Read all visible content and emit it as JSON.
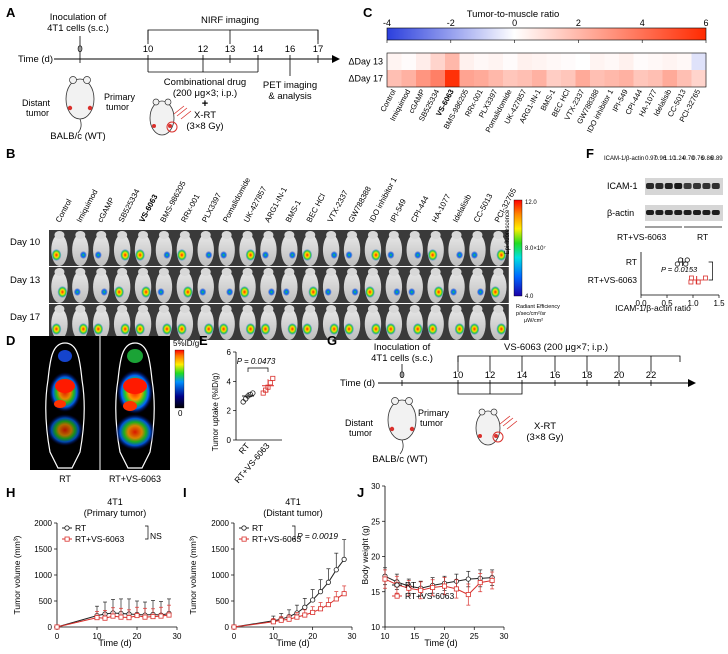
{
  "panels": {
    "A": {
      "letter": "A",
      "inoculation": [
        "Inoculation of",
        "4T1 cells (s.c.)"
      ],
      "nirf": "NIRF imaging",
      "time_label": "Time (d)",
      "days": [
        "0",
        "10",
        "12",
        "13",
        "14",
        "16",
        "17"
      ],
      "combo": [
        "Combinational drug",
        "(200 μg×3; i.p.)"
      ],
      "xrt": [
        "+",
        "X-RT",
        "(3×8 Gy)"
      ],
      "pet": [
        "PET imaging",
        "& analysis"
      ],
      "distant": [
        "Distant",
        "tumor"
      ],
      "primary": [
        "Primary",
        "tumor"
      ],
      "strain": "BALB/c (WT)"
    },
    "C": {
      "letter": "C",
      "title": "Tumor-to-muscle ratio",
      "scale_ticks": [
        "-4",
        "-2",
        "0",
        "2",
        "4",
        "6"
      ],
      "rows": [
        "ΔDay 13",
        "ΔDay 17"
      ]
    },
    "B": {
      "letter": "B",
      "rows": [
        "Day 10",
        "Day 13",
        "Day 17"
      ],
      "colorbar_title": "Epi-fluorescence",
      "colorbar_max": "12.0",
      "colorbar_mid": "8.0×10⁷",
      "colorbar_min": "4.0",
      "units": [
        "Radiant Efficiency",
        "p/sec/cm²/sr",
        "μW/cm²"
      ]
    },
    "F": {
      "letter": "F",
      "ratio_label": "ICAM-1/β-actin",
      "ratios": [
        "0.97",
        "0.96",
        "1.10",
        "1.24",
        "0.70",
        "0.76",
        "0.86",
        "0.89"
      ],
      "band1": "ICAM-1",
      "band2": "β-actin",
      "group1": "RT+VS-6063",
      "group2": "RT",
      "p_value": "P = 0.0153",
      "xlabel": "ICAM-1/β-actin ratio",
      "xticks": [
        "0.0",
        "0.5",
        "1.0",
        "1.5"
      ]
    },
    "D": {
      "letter": "D",
      "scale_top": "5%ID/g",
      "scale_bottom": "0",
      "label_left": "RT",
      "label_right": "RT+VS-6063"
    },
    "E": {
      "letter": "E",
      "p_value": "P = 0.0473",
      "ylabel": "Tumor uptake (%ID/g)",
      "yticks": [
        "0",
        "2",
        "4",
        "6"
      ],
      "cats": [
        "RT",
        "RT+VS-6063"
      ]
    },
    "G": {
      "letter": "G",
      "inoculation": [
        "Inoculation of",
        "4T1 cells (s.c.)"
      ],
      "drug": "VS-6063 (200 μg×7; i.p.)",
      "time_label": "Time (d)",
      "days": [
        "0",
        "10",
        "12",
        "14",
        "16",
        "18",
        "20",
        "22"
      ],
      "xrt": [
        "X-RT",
        "(3×8 Gy)"
      ],
      "distant": [
        "Distant",
        "tumor"
      ],
      "primary": [
        "Primary",
        "tumor"
      ],
      "strain": "BALB/c (WT)"
    },
    "H": {
      "letter": "H",
      "title": [
        "4T1",
        "(Primary tumor)"
      ],
      "ylabel": "Tumor volume (mm³)",
      "xlabel": "Time (d)",
      "legend": [
        "RT",
        "RT+VS-6063"
      ],
      "sig": "NS",
      "yticks": [
        "0",
        "500",
        "1000",
        "1500",
        "2000"
      ],
      "xticks": [
        "0",
        "10",
        "20",
        "30"
      ]
    },
    "I": {
      "letter": "I",
      "title": [
        "4T1",
        "(Distant tumor)"
      ],
      "ylabel": "Tumor volume (mm³)",
      "xlabel": "Time (d)",
      "legend": [
        "RT",
        "RT+VS-6063"
      ],
      "sig": "P = 0.0019",
      "yticks": [
        "0",
        "500",
        "1000",
        "1500",
        "2000"
      ],
      "xticks": [
        "0",
        "10",
        "20",
        "30"
      ]
    },
    "J": {
      "letter": "J",
      "ylabel": "Body weight (g)",
      "xlabel": "Time (d)",
      "legend": [
        "RT",
        "RT+VS-6063"
      ],
      "yticks": [
        "10",
        "15",
        "20",
        "25",
        "30"
      ],
      "xticks": [
        "10",
        "15",
        "20",
        "25",
        "30"
      ]
    }
  },
  "treatments": [
    "Control",
    "Imiquimod",
    "cGAMP",
    "SB525334",
    "VS-6063",
    "BMS-986205",
    "RRx-001",
    "PLX3397",
    "Pomalidomide",
    "UK-427857",
    "ARG1-IN-1",
    "BMS-1",
    "BEC HCl",
    "VTX-2337",
    "GW788388",
    "IDO inhibitor 1",
    "IPI-549",
    "CPI-444",
    "HA-1077",
    "Idelalisib",
    "CC-5013",
    "PCI-32765"
  ],
  "colors": {
    "rt": "#222222",
    "rt_vs": "#d9302c",
    "hot": "#ff2a00",
    "cold": "#2b3fdd"
  },
  "chart_data": [
    {
      "panel": "C",
      "type": "heatmap",
      "title": "Tumor-to-muscle ratio",
      "rows": [
        "ΔDay 13",
        "ΔDay 17"
      ],
      "columns": [
        "Control",
        "Imiquimod",
        "cGAMP",
        "SB525334",
        "VS-6063",
        "BMS-986205",
        "RRx-001",
        "PLX3397",
        "Pomalidomide",
        "UK-427857",
        "ARG1-IN-1",
        "BMS-1",
        "BEC HCl",
        "VTX-2337",
        "GW788388",
        "IDO inhibitor 1",
        "IPI-549",
        "CPI-444",
        "HA-1077",
        "Idelalisib",
        "CC-5013",
        "PCI-32765"
      ],
      "values": [
        [
          0.3,
          0.1,
          0.5,
          1.2,
          2.0,
          0.4,
          0.2,
          0.3,
          0.1,
          0.4,
          0.3,
          0.2,
          0.1,
          0.0,
          0.3,
          0.2,
          0.4,
          0.1,
          0.2,
          0.3,
          0.2,
          -0.6
        ],
        [
          1.8,
          2.2,
          3.0,
          3.6,
          5.8,
          2.6,
          2.4,
          2.0,
          1.6,
          1.8,
          2.2,
          1.4,
          1.6,
          2.4,
          1.8,
          2.0,
          2.2,
          1.6,
          1.8,
          2.4,
          1.8,
          1.2
        ]
      ],
      "scale": [
        -4,
        6
      ]
    },
    {
      "panel": "E",
      "type": "scatter",
      "ylabel": "Tumor uptake (%ID/g)",
      "categories": [
        "RT",
        "RT+VS-6063"
      ],
      "series": [
        {
          "name": "RT",
          "values": [
            2.6,
            2.8,
            3.0,
            3.1,
            3.2
          ],
          "mean": 3.0,
          "sd": 0.25
        },
        {
          "name": "RT+VS-6063",
          "values": [
            3.2,
            3.4,
            3.6,
            3.9,
            4.2
          ],
          "mean": 3.7,
          "sd": 0.45
        }
      ],
      "ylim": [
        0,
        6
      ]
    },
    {
      "panel": "F",
      "type": "scatter",
      "xlabel": "ICAM-1/β-actin ratio",
      "categories": [
        "RT",
        "RT+VS-6063"
      ],
      "series": [
        {
          "name": "RT",
          "values": [
            0.7,
            0.76,
            0.86,
            0.89
          ],
          "mean": 0.8,
          "sd": 0.09
        },
        {
          "name": "RT+VS-6063",
          "values": [
            0.96,
            0.97,
            1.1,
            1.24
          ],
          "mean": 1.07,
          "sd": 0.13
        }
      ],
      "xlim": [
        0,
        1.5
      ]
    },
    {
      "panel": "H",
      "type": "line",
      "x": [
        0,
        10,
        12,
        14,
        16,
        18,
        20,
        22,
        24,
        26,
        28
      ],
      "series": [
        {
          "name": "RT",
          "values": [
            0,
            220,
            250,
            270,
            260,
            250,
            240,
            230,
            240,
            230,
            260
          ],
          "err": [
            0,
            180,
            230,
            260,
            280,
            290,
            260,
            250,
            270,
            260,
            280
          ]
        },
        {
          "name": "RT+VS-6063",
          "values": [
            0,
            180,
            170,
            210,
            190,
            180,
            220,
            190,
            200,
            210,
            230
          ],
          "err": [
            0,
            120,
            150,
            160,
            170,
            150,
            160,
            170,
            150,
            170,
            190
          ]
        }
      ],
      "xlim": [
        0,
        30
      ],
      "ylim": [
        0,
        2000
      ]
    },
    {
      "panel": "I",
      "type": "line",
      "x": [
        0,
        10,
        12,
        14,
        16,
        18,
        20,
        22,
        24,
        26,
        28
      ],
      "series": [
        {
          "name": "RT",
          "values": [
            0,
            120,
            150,
            200,
            270,
            380,
            520,
            680,
            860,
            1100,
            1300
          ],
          "err": [
            0,
            90,
            110,
            130,
            150,
            170,
            200,
            230,
            260,
            320,
            380
          ]
        },
        {
          "name": "RT+VS-6063",
          "values": [
            0,
            100,
            130,
            150,
            190,
            230,
            280,
            350,
            430,
            540,
            640
          ],
          "err": [
            0,
            60,
            70,
            80,
            90,
            100,
            110,
            120,
            130,
            140,
            150
          ]
        }
      ],
      "xlim": [
        0,
        30
      ],
      "ylim": [
        0,
        2000
      ]
    },
    {
      "panel": "J",
      "type": "line",
      "x": [
        10,
        12,
        14,
        16,
        18,
        20,
        22,
        24,
        26,
        28
      ],
      "series": [
        {
          "name": "RT",
          "values": [
            17.2,
            16.4,
            15.8,
            15.5,
            15.9,
            16.2,
            16.5,
            16.8,
            16.9,
            17.0
          ],
          "err": [
            1.2,
            1.1,
            1.0,
            1.0,
            1.1,
            1.0,
            1.0,
            1.1,
            1.2,
            1.1
          ]
        },
        {
          "name": "RT+VS-6063",
          "values": [
            16.8,
            16.0,
            15.5,
            15.2,
            15.6,
            15.8,
            15.4,
            14.6,
            16.3,
            16.6
          ],
          "err": [
            1.3,
            1.2,
            1.1,
            1.2,
            1.1,
            1.2,
            1.3,
            1.5,
            1.3,
            1.2
          ]
        }
      ],
      "xlim": [
        10,
        30
      ],
      "ylim": [
        10,
        30
      ]
    }
  ]
}
